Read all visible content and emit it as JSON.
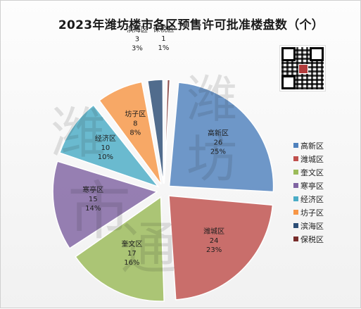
{
  "chart_data": {
    "type": "pie",
    "title": "2023年潍坊楼市各区预售许可批准楼盘数（个）",
    "slices": [
      {
        "name": "高新区",
        "value": 26,
        "percent": "25%",
        "color": "#4f81bd"
      },
      {
        "name": "潍城区",
        "value": 24,
        "percent": "23%",
        "color": "#c0504d"
      },
      {
        "name": "奎文区",
        "value": 17,
        "percent": "16%",
        "color": "#9bbb59"
      },
      {
        "name": "寒亭区",
        "value": 15,
        "percent": "14%",
        "color": "#8064a2"
      },
      {
        "name": "经济区",
        "value": 10,
        "percent": "10%",
        "color": "#4bacc6"
      },
      {
        "name": "坊子区",
        "value": 8,
        "percent": "8%",
        "color": "#f79646"
      },
      {
        "name": "滨海区",
        "value": 3,
        "percent": "3%",
        "color": "#2c4d75"
      },
      {
        "name": "保税区",
        "value": 1,
        "percent": "1%",
        "color": "#772c2a"
      }
    ],
    "legend_position": "right",
    "style": "exploded"
  },
  "watermark": {
    "text": "潍坊市通"
  },
  "qr_code": {
    "present": true
  }
}
